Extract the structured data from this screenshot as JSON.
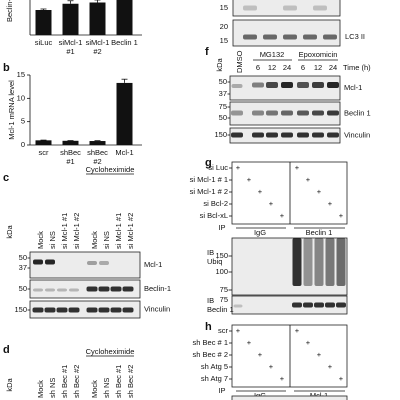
{
  "panels": {
    "a": {
      "y_label": "Beclin-1",
      "categories": [
        [
          "siLuc"
        ],
        [
          "siMcl-1",
          "#1"
        ],
        [
          "siMcl-1",
          "#2"
        ],
        [
          "Beclin 1"
        ]
      ],
      "values": [
        1,
        1.25,
        1.3,
        1.6
      ],
      "errors": [
        0.04,
        0.12,
        0.1,
        null
      ],
      "ylim": [
        0,
        1.4
      ]
    },
    "b": {
      "label": "b",
      "y_label": "Mcl-1 mRNA level",
      "categories": [
        [
          "scr"
        ],
        [
          "shBec",
          "#1"
        ],
        [
          "shBec",
          "#2"
        ],
        [
          "Mcl-1"
        ]
      ],
      "values": [
        1,
        0.9,
        0.85,
        13.3
      ],
      "errors": [
        0.05,
        0.05,
        0.08,
        0.8
      ],
      "ylim": [
        0,
        15
      ],
      "yticks": [
        0,
        5,
        10,
        15
      ]
    },
    "c": {
      "label": "c",
      "treatment": "Cycloheximide",
      "unit": "kDa",
      "lanes": [
        "Mock",
        "si NS",
        "si Mcl-1 #1",
        "si Mcl-1 #2",
        "Mock",
        "si NS",
        "si Mcl-1 #1",
        "si Mcl-1 #2"
      ],
      "blots": [
        {
          "name": "Mcl-1",
          "markers": [
            "50",
            "37"
          ]
        },
        {
          "name": "Beclin-1",
          "markers": [
            "50"
          ]
        },
        {
          "name": "Vinculin",
          "markers": [
            "150"
          ]
        }
      ]
    },
    "d": {
      "label": "d",
      "treatment": "Cycloheximide",
      "unit": "kDa",
      "lanes": [
        "Mock",
        "sh NS",
        "sh Bec #1",
        "sh Bec #2",
        "Mock",
        "sh NS",
        "sh Bec #1",
        "sh Bec #2"
      ]
    },
    "e": {
      "blots": [
        {
          "markers": [
            "15"
          ]
        },
        {
          "name": "LC3 II",
          "markers": [
            "20",
            "15"
          ]
        }
      ]
    },
    "f": {
      "label": "f",
      "unit": "kDa",
      "control": "DMSO",
      "groups": [
        "MG132",
        "Epoxomicin"
      ],
      "times": [
        "6",
        "12",
        "24",
        "6",
        "12",
        "24"
      ],
      "time_label": "Time (h)",
      "blots": [
        {
          "name": "Mcl-1",
          "markers": [
            "50",
            "37"
          ]
        },
        {
          "name": "Beclin 1",
          "markers": [
            "75",
            "50"
          ]
        },
        {
          "name": "Vinculin",
          "markers": [
            "150"
          ]
        }
      ]
    },
    "g": {
      "label": "g",
      "conditions": [
        "si Luc",
        "si Mcl-1 # 1",
        "si Mcl-1 # 2",
        "si Bcl-2",
        "si Bcl-xL"
      ],
      "plus": [
        [
          "+",
          null,
          null,
          null,
          null,
          "+",
          null,
          null,
          null,
          null
        ],
        [
          null,
          "+",
          null,
          null,
          null,
          null,
          "+",
          null,
          null,
          null
        ],
        [
          null,
          null,
          "+",
          null,
          null,
          null,
          null,
          "+",
          null,
          null
        ],
        [
          null,
          null,
          null,
          "+",
          null,
          null,
          null,
          null,
          "+",
          null
        ],
        [
          null,
          null,
          null,
          null,
          "+",
          null,
          null,
          null,
          null,
          "+"
        ]
      ],
      "ip_label": "IP",
      "ip": [
        "IgG",
        "Beclin 1"
      ],
      "blots": [
        {
          "ib": "IB",
          "name": "Ubiq",
          "markers": [
            "150",
            "100",
            "75"
          ]
        },
        {
          "ib": "IB",
          "name": "Beclin 1",
          "markers": [
            "75"
          ]
        }
      ]
    },
    "h": {
      "label": "h",
      "conditions": [
        "scr",
        "sh Bec # 1",
        "sh Bec # 2",
        "sh Atg 5",
        "sh Atg 7"
      ],
      "plus": [
        [
          "+",
          null,
          null,
          null,
          null,
          "+",
          null,
          null,
          null,
          null
        ],
        [
          null,
          "+",
          null,
          null,
          null,
          null,
          "+",
          null,
          null,
          null
        ],
        [
          null,
          null,
          "+",
          null,
          null,
          null,
          null,
          "+",
          null,
          null
        ],
        [
          null,
          null,
          null,
          "+",
          null,
          null,
          null,
          null,
          "+",
          null
        ],
        [
          null,
          null,
          null,
          null,
          "+",
          null,
          null,
          null,
          null,
          "+"
        ]
      ],
      "ip_label": "IP",
      "ip": [
        "IgG",
        "Mcl-1"
      ]
    }
  }
}
